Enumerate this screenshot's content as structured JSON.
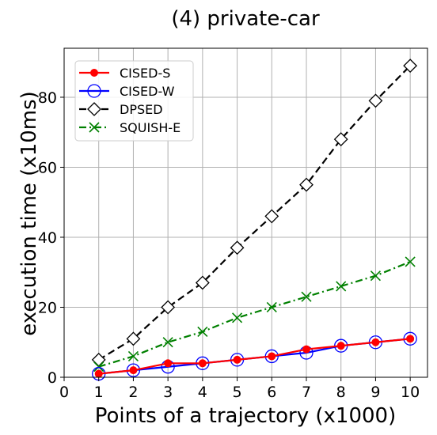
{
  "chart_data": {
    "type": "line",
    "title": "(4) private-car",
    "xlabel": "Points of a trajectory (x1000)",
    "ylabel": "execution time (x10ms)",
    "xlim": [
      0,
      10.5
    ],
    "ylim": [
      0,
      94
    ],
    "x_ticks": [
      0,
      1,
      2,
      3,
      4,
      5,
      6,
      7,
      8,
      9,
      10
    ],
    "y_ticks": [
      0,
      20,
      40,
      60,
      80
    ],
    "grid": true,
    "legend_position": "top-left",
    "x": [
      1,
      2,
      3,
      4,
      5,
      6,
      7,
      8,
      9,
      10
    ],
    "series": [
      {
        "name": "CISED-S",
        "color": "#ff0000",
        "marker": "filled-circle",
        "line": "solid",
        "values": [
          1,
          2,
          4,
          4,
          5,
          6,
          8,
          9,
          10,
          11
        ]
      },
      {
        "name": "CISED-W",
        "color": "#0000ff",
        "marker": "open-circle",
        "line": "solid",
        "values": [
          1,
          2,
          3,
          4,
          5,
          6,
          7,
          9,
          10,
          11
        ]
      },
      {
        "name": "DPSED",
        "color": "#000000",
        "marker": "open-diamond",
        "line": "dashed",
        "values": [
          5,
          11,
          20,
          27,
          37,
          46,
          55,
          68,
          79,
          89
        ]
      },
      {
        "name": "SQUISH-E",
        "color": "#008000",
        "marker": "x",
        "line": "dashdot",
        "values": [
          3,
          6,
          10,
          13,
          17,
          20,
          23,
          26,
          29,
          33
        ]
      }
    ]
  }
}
